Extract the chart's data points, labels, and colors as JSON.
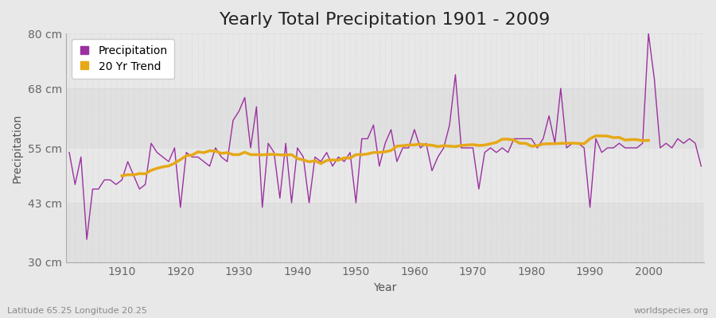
{
  "title": "Yearly Total Precipitation 1901 - 2009",
  "xlabel": "Year",
  "ylabel": "Precipitation",
  "lat_lon_label": "Latitude 65.25 Longitude 20.25",
  "watermark": "worldspecies.org",
  "years": [
    1901,
    1902,
    1903,
    1904,
    1905,
    1906,
    1907,
    1908,
    1909,
    1910,
    1911,
    1912,
    1913,
    1914,
    1915,
    1916,
    1917,
    1918,
    1919,
    1920,
    1921,
    1922,
    1923,
    1924,
    1925,
    1926,
    1927,
    1928,
    1929,
    1930,
    1931,
    1932,
    1933,
    1934,
    1935,
    1936,
    1937,
    1938,
    1939,
    1940,
    1941,
    1942,
    1943,
    1944,
    1945,
    1946,
    1947,
    1948,
    1949,
    1950,
    1951,
    1952,
    1953,
    1954,
    1955,
    1956,
    1957,
    1958,
    1959,
    1960,
    1961,
    1962,
    1963,
    1964,
    1965,
    1966,
    1967,
    1968,
    1969,
    1970,
    1971,
    1972,
    1973,
    1974,
    1975,
    1976,
    1977,
    1978,
    1979,
    1980,
    1981,
    1982,
    1983,
    1984,
    1985,
    1986,
    1987,
    1988,
    1989,
    1990,
    1991,
    1992,
    1993,
    1994,
    1995,
    1996,
    1997,
    1998,
    1999,
    2000,
    2001,
    2002,
    2003,
    2004,
    2005,
    2006,
    2007,
    2008,
    2009
  ],
  "precip": [
    54,
    47,
    53,
    35,
    46,
    46,
    48,
    48,
    47,
    48,
    52,
    49,
    46,
    47,
    56,
    54,
    53,
    52,
    55,
    42,
    54,
    53,
    53,
    52,
    51,
    55,
    53,
    52,
    61,
    63,
    66,
    55,
    64,
    42,
    56,
    54,
    44,
    56,
    43,
    55,
    53,
    43,
    53,
    52,
    54,
    51,
    53,
    52,
    54,
    43,
    57,
    57,
    60,
    51,
    56,
    59,
    52,
    55,
    55,
    59,
    55,
    56,
    50,
    53,
    55,
    60,
    71,
    55,
    55,
    55,
    46,
    54,
    55,
    54,
    55,
    54,
    57,
    57,
    57,
    57,
    55,
    57,
    62,
    56,
    68,
    55,
    56,
    56,
    55,
    42,
    57,
    54,
    55,
    55,
    56,
    55,
    55,
    55,
    56,
    80,
    70,
    55,
    56,
    55,
    57,
    56,
    57,
    56,
    51
  ],
  "precip_color": "#9b30a0",
  "trend_color": "#e6a817",
  "bg_color": "#e8e8e8",
  "plot_bg_color": "#e8e8e8",
  "grid_color": "#cccccc",
  "ylim": [
    30,
    80
  ],
  "yticks": [
    30,
    43,
    55,
    68,
    80
  ],
  "ytick_labels": [
    "30 cm",
    "43 cm",
    "55 cm",
    "68 cm",
    "80 cm"
  ],
  "xticks": [
    1910,
    1920,
    1930,
    1940,
    1950,
    1960,
    1970,
    1980,
    1990,
    2000
  ],
  "title_fontsize": 16,
  "axis_fontsize": 10,
  "legend_fontsize": 10,
  "trend_window": 20
}
